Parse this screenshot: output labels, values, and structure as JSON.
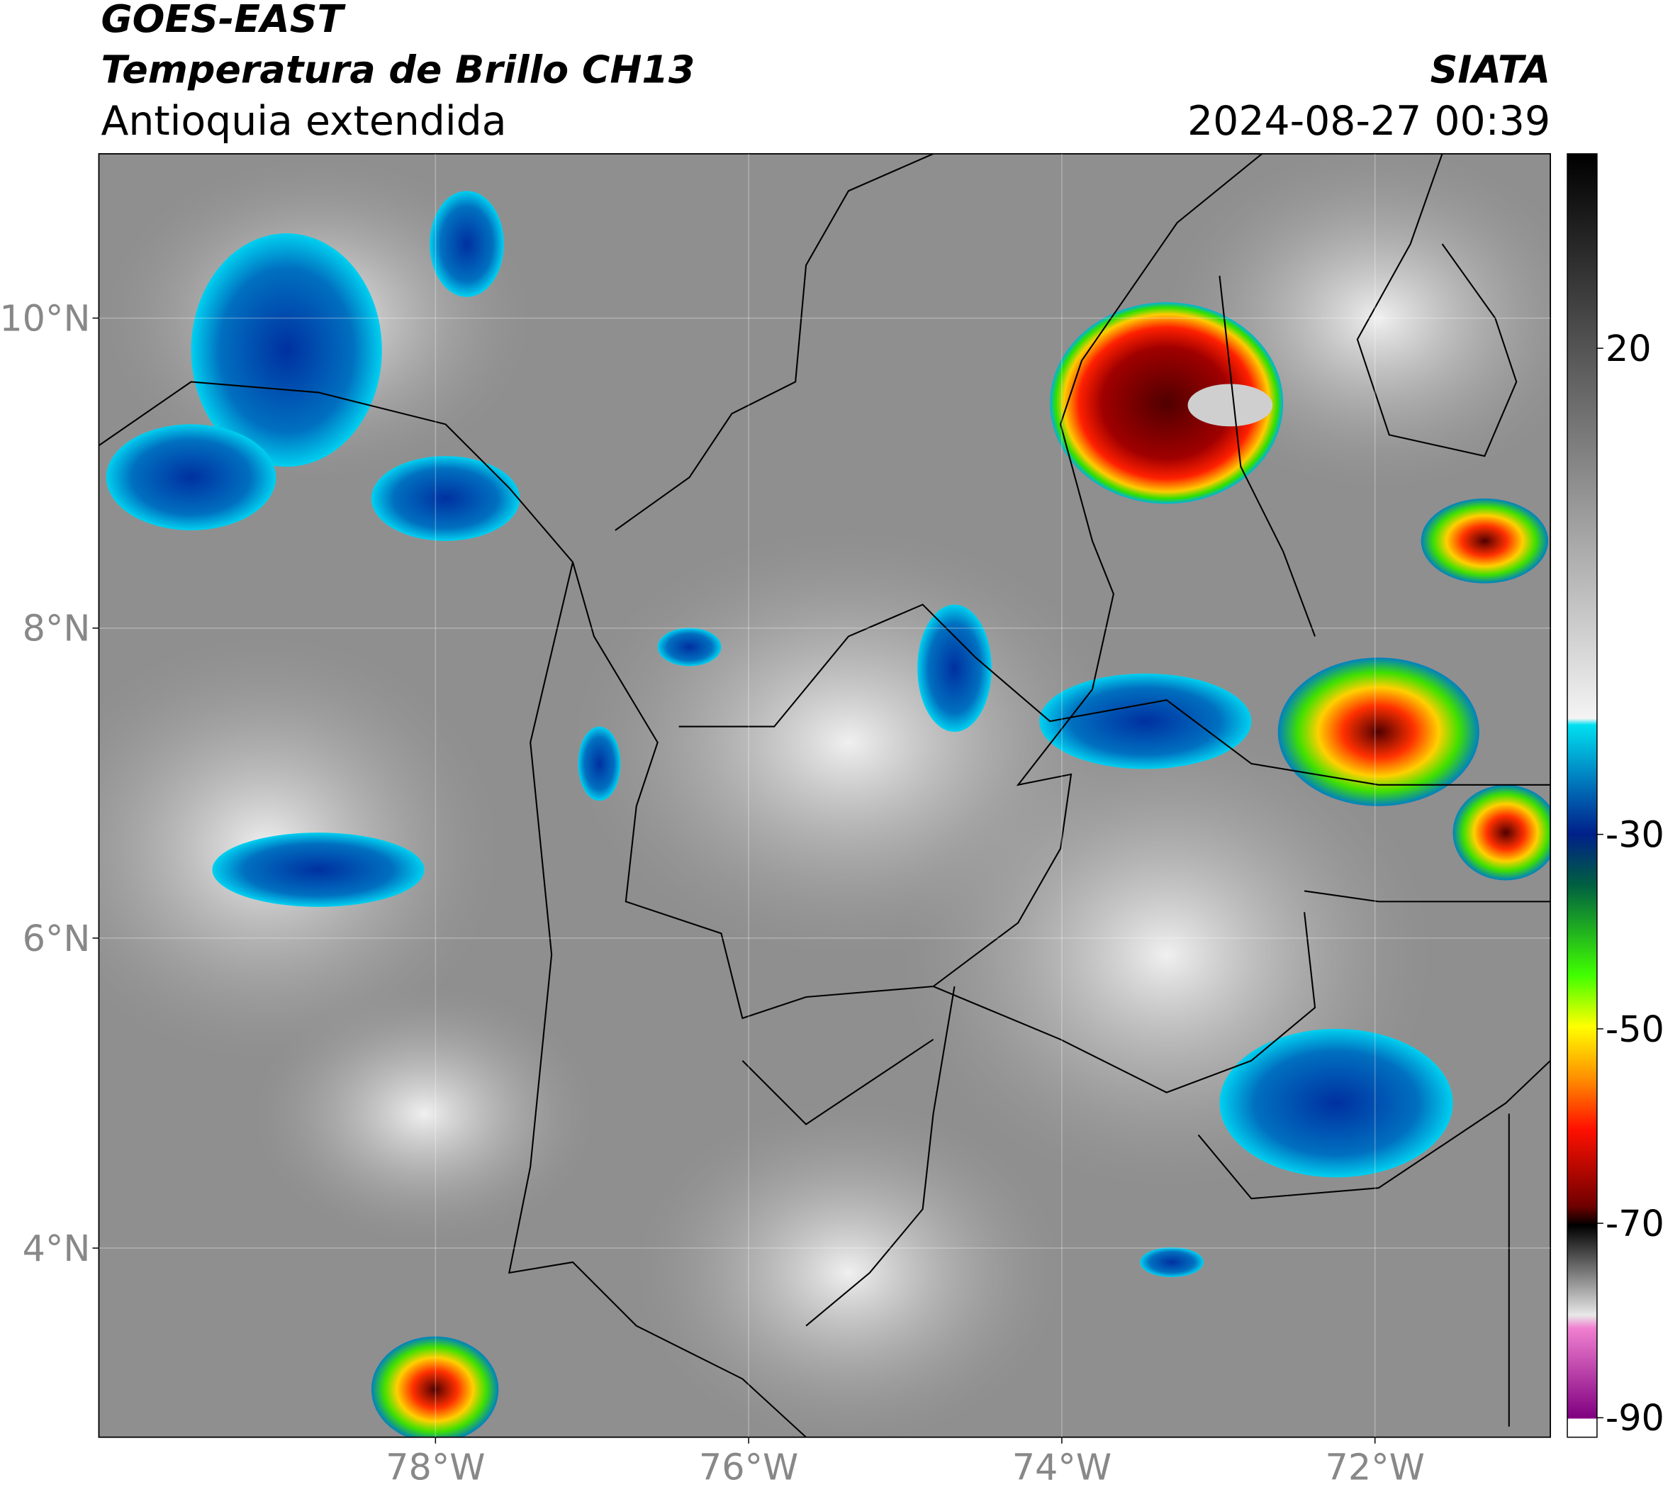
{
  "header": {
    "satellite": "GOES-EAST",
    "product": "Temperatura de Brillo CH13",
    "region": "Antioquia extendida",
    "agency": "SIATA",
    "timestamp": "2024-08-27 00:39"
  },
  "map": {
    "lon_range": [
      -80.15,
      -70.88
    ],
    "lat_range": [
      2.78,
      11.06
    ],
    "lon_ticks": [
      {
        "value": -78,
        "label": "78°W"
      },
      {
        "value": -76,
        "label": "76°W"
      },
      {
        "value": -74,
        "label": "74°W"
      },
      {
        "value": -72,
        "label": "72°W"
      }
    ],
    "lat_ticks": [
      {
        "value": 10,
        "label": "10°N"
      },
      {
        "value": 8,
        "label": "8°N"
      },
      {
        "value": 6,
        "label": "6°N"
      },
      {
        "value": 4,
        "label": "4°N"
      }
    ]
  },
  "colorbar": {
    "range": [
      -92,
      40
    ],
    "ticks": [
      20,
      -30,
      -50,
      -70,
      -90
    ]
  }
}
